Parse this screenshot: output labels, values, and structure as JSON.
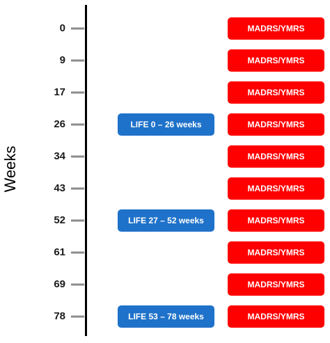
{
  "axis_title": "Weeks",
  "colors": {
    "assessment": "#ff0000",
    "life": "#1f72c9",
    "timeline": "#000000",
    "tick": "#8c8c8c"
  },
  "timepoints": [
    {
      "week": "0",
      "assessment": "MADRS/YMRS",
      "life": ""
    },
    {
      "week": "9",
      "assessment": "MADRS/YMRS",
      "life": ""
    },
    {
      "week": "17",
      "assessment": "MADRS/YMRS",
      "life": ""
    },
    {
      "week": "26",
      "assessment": "MADRS/YMRS",
      "life": "LIFE 0 – 26 weeks"
    },
    {
      "week": "34",
      "assessment": "MADRS/YMRS",
      "life": ""
    },
    {
      "week": "43",
      "assessment": "MADRS/YMRS",
      "life": ""
    },
    {
      "week": "52",
      "assessment": "MADRS/YMRS",
      "life": "LIFE 27 – 52 weeks"
    },
    {
      "week": "61",
      "assessment": "MADRS/YMRS",
      "life": ""
    },
    {
      "week": "69",
      "assessment": "MADRS/YMRS",
      "life": ""
    },
    {
      "week": "78",
      "assessment": "MADRS/YMRS",
      "life": "LIFE 53 – 78 weeks"
    }
  ]
}
